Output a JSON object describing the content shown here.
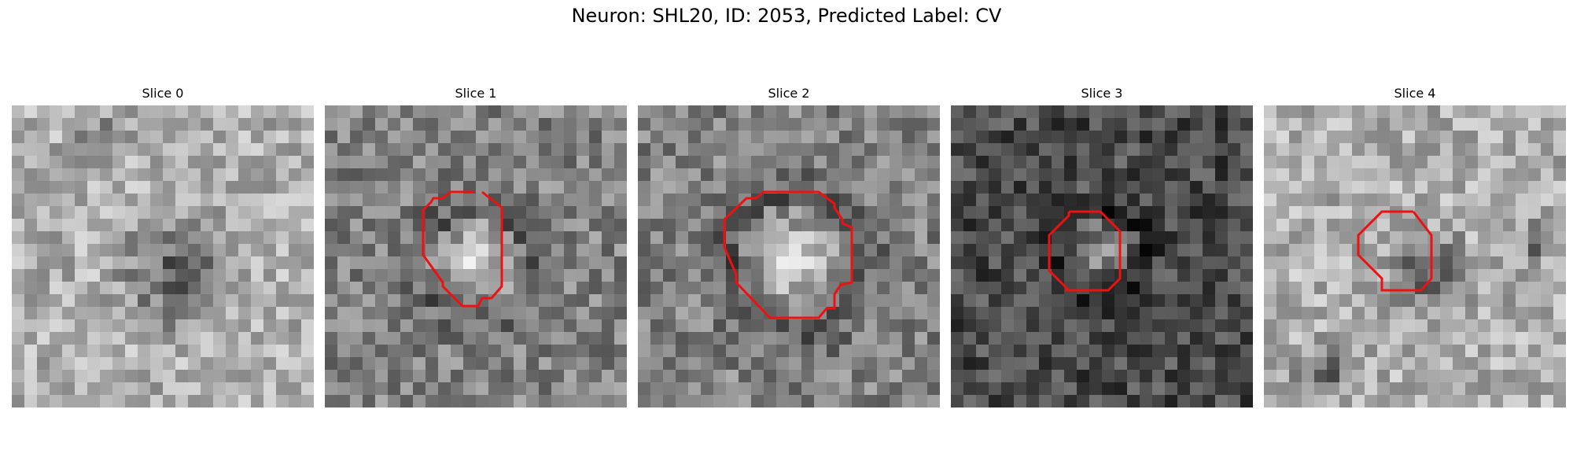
{
  "figure": {
    "title": "Neuron: SHL20, ID: 2053, Predicted Label: CV"
  },
  "contour_color": "#ee1111",
  "slices": [
    {
      "title": "Slice 0",
      "has_contour": false,
      "tone": "light",
      "dark_spots": [
        [
          0.3,
          0.12,
          0.1
        ],
        [
          0.55,
          0.55,
          0.25
        ]
      ]
    },
    {
      "title": "Slice 1",
      "has_contour": true,
      "tone": "mid",
      "bright_center": [
        0.5,
        0.52,
        0.16
      ]
    },
    {
      "title": "Slice 2",
      "has_contour": true,
      "tone": "mid",
      "bright_center": [
        0.52,
        0.52,
        0.2
      ]
    },
    {
      "title": "Slice 3",
      "has_contour": true,
      "tone": "dark",
      "bright_center": [
        0.5,
        0.48,
        0.12
      ]
    },
    {
      "title": "Slice 4",
      "has_contour": true,
      "tone": "light",
      "dark_spots": [
        [
          0.55,
          0.55,
          0.18
        ],
        [
          0.9,
          0.45,
          0.08
        ],
        [
          0.2,
          0.88,
          0.12
        ]
      ]
    }
  ]
}
